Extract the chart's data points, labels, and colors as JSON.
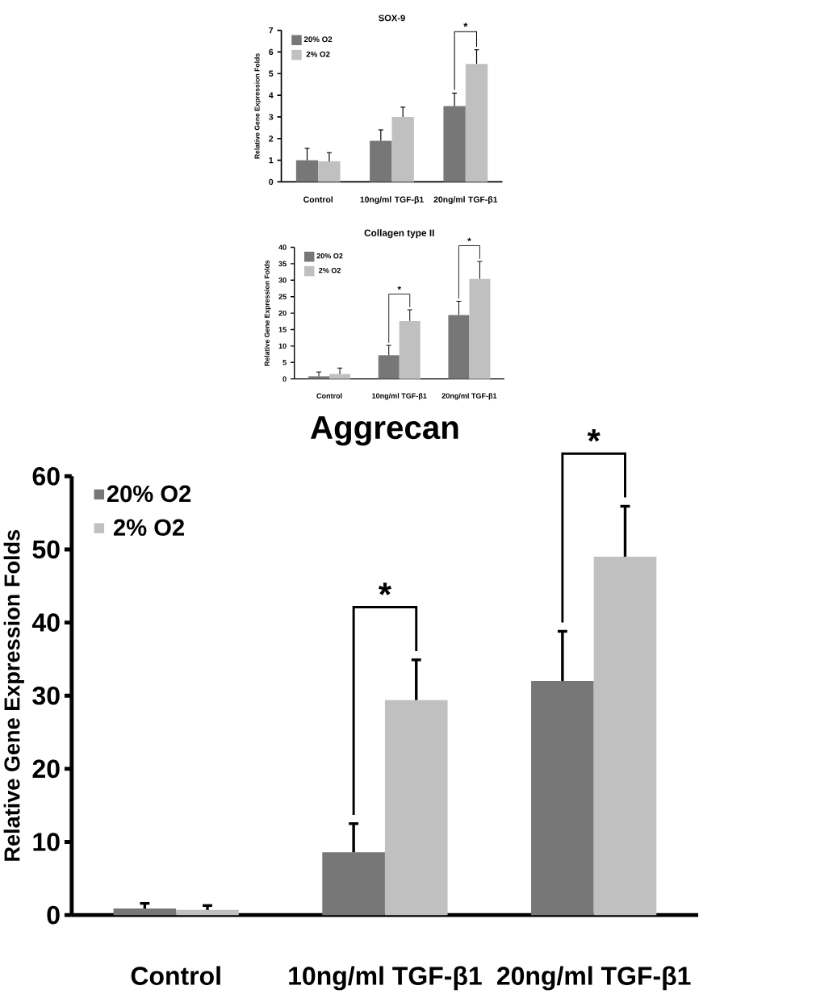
{
  "chart_data": [
    {
      "type": "bar",
      "title": "SOX-9",
      "ylabel": "Relative Gene Expression Folds",
      "categories": [
        "Control",
        "10ng/ml TGF-β1",
        "20ng/ml TGF-β1"
      ],
      "ylim": [
        0,
        7
      ],
      "yticks": [
        0,
        1,
        2,
        3,
        4,
        5,
        6,
        7
      ],
      "legend": "top left",
      "series": [
        {
          "name": "20% O2",
          "color": "#777777",
          "values": [
            1.0,
            1.9,
            3.5
          ],
          "errors": [
            [
              1.0,
              1.55
            ],
            [
              1.9,
              2.4
            ],
            [
              3.5,
              4.1
            ]
          ]
        },
        {
          "name": "2% O2",
          "color": "#c0c0c0",
          "values": [
            0.95,
            3.0,
            5.45
          ],
          "errors": [
            [
              0.95,
              1.35
            ],
            [
              3.0,
              3.45
            ],
            [
              5.45,
              6.1
            ]
          ]
        }
      ],
      "annotations": [
        "*"
      ]
    },
    {
      "type": "bar",
      "title": "Collagen type II",
      "ylabel": "Relative Gene Expression Folds",
      "categories": [
        "Control",
        "10ng/ml TGF-β1",
        "20ng/ml TGF-β1"
      ],
      "ylim": [
        0,
        40
      ],
      "yticks": [
        0,
        5,
        10,
        15,
        20,
        25,
        30,
        35,
        40
      ],
      "legend": "top left",
      "series": [
        {
          "name": "20% O2",
          "color": "#777777",
          "values": [
            0.8,
            7.2,
            19.4
          ],
          "errors": [
            [
              0.8,
              2.1
            ],
            [
              7.2,
              10.2
            ],
            [
              19.4,
              23.6
            ]
          ]
        },
        {
          "name": "2% O2",
          "color": "#c0c0c0",
          "values": [
            1.5,
            17.6,
            30.4
          ],
          "errors": [
            [
              1.5,
              3.3
            ],
            [
              17.6,
              21.0
            ],
            [
              30.4,
              35.7
            ]
          ]
        }
      ],
      "annotations": [
        "*",
        "*"
      ]
    },
    {
      "type": "bar",
      "title": "Aggrecan",
      "ylabel": "Relative Gene Expression Folds",
      "categories": [
        "Control",
        "10ng/ml TGF-β1",
        "20ng/ml TGF-β1"
      ],
      "ylim": [
        0,
        60
      ],
      "yticks": [
        0,
        10,
        20,
        30,
        40,
        50,
        60
      ],
      "legend": "top left",
      "series": [
        {
          "name": "20% O2",
          "color": "#777777",
          "values": [
            0.9,
            8.6,
            32.0
          ],
          "errors": [
            [
              0.9,
              1.6
            ],
            [
              8.6,
              12.5
            ],
            [
              32.0,
              38.8
            ]
          ]
        },
        {
          "name": "2% O2",
          "color": "#c0c0c0",
          "values": [
            0.7,
            29.4,
            49.0
          ],
          "errors": [
            [
              0.7,
              1.3
            ],
            [
              29.4,
              34.9
            ],
            [
              49.0,
              55.9
            ]
          ]
        }
      ],
      "annotations": [
        "*",
        "*"
      ]
    }
  ]
}
